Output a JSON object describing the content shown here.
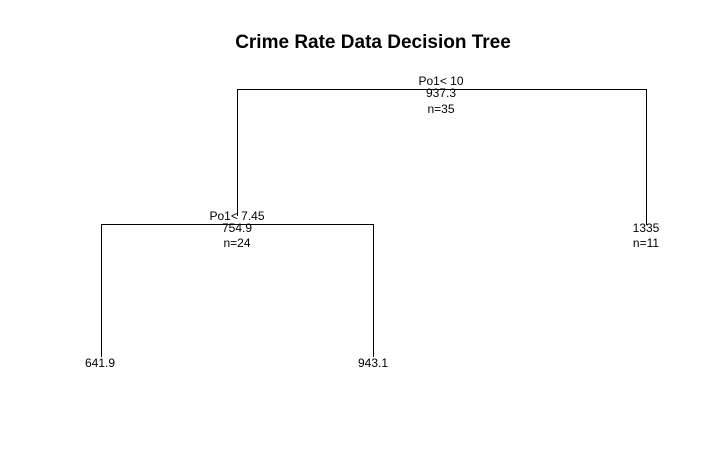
{
  "title": "Crime Rate Data Decision Tree",
  "tree": {
    "root": {
      "split": "Po1< 10",
      "mean": "937.3",
      "n": "n=35"
    },
    "left": {
      "split": "Po1< 7.45",
      "mean": "754.9",
      "n": "n=24"
    },
    "right_leaf": {
      "mean": "1335",
      "n": "n=11"
    },
    "left_left_leaf": {
      "mean": "641.9"
    },
    "left_right_leaf": {
      "mean": "943.1"
    }
  }
}
